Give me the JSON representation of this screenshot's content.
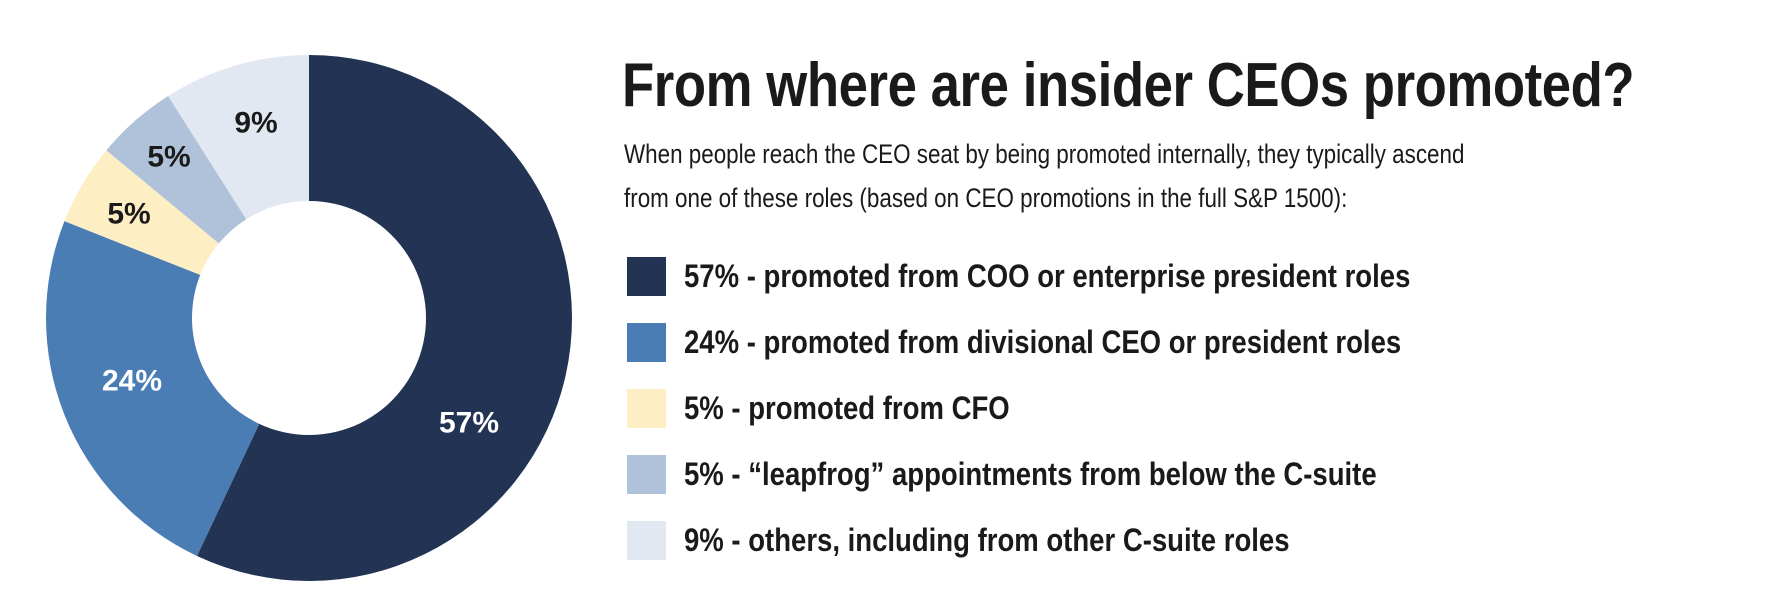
{
  "chart_data": {
    "type": "pie",
    "variant": "donut",
    "title": "From where are insider CEOs promoted?",
    "subtitle": "When people reach the CEO seat by being promoted internally, they typically ascend from one of these roles  (based on CEO promotions in the full S&P 1500):",
    "subtitle_lines": [
      "When people reach the CEO seat by being promoted internally, they typically ascend",
      "from one of these roles  (based on CEO promotions in the full S&P 1500):"
    ],
    "legend_placement": "right",
    "slices": [
      {
        "value": 57,
        "label": "57%",
        "legend": "57% - promoted from COO or enterprise president roles",
        "color": "#223353",
        "label_color": "#ffffff"
      },
      {
        "value": 24,
        "label": "24%",
        "legend": "24% - promoted from divisional CEO or president roles",
        "color": "#4a7db4",
        "label_color": "#ffffff"
      },
      {
        "value": 5,
        "label": "5%",
        "legend": "5% - promoted from CFO",
        "color": "#fdeec3",
        "label_color": "#1a1a1a"
      },
      {
        "value": 5,
        "label": "5%",
        "legend": "5% - “leapfrog” appointments from below the C-suite",
        "color": "#b0c2da",
        "label_color": "#1a1a1a"
      },
      {
        "value": 9,
        "label": "9%",
        "legend": "9% - others, including from other C-suite roles",
        "color": "#e2e8f2",
        "label_color": "#1a1a1a"
      }
    ]
  }
}
